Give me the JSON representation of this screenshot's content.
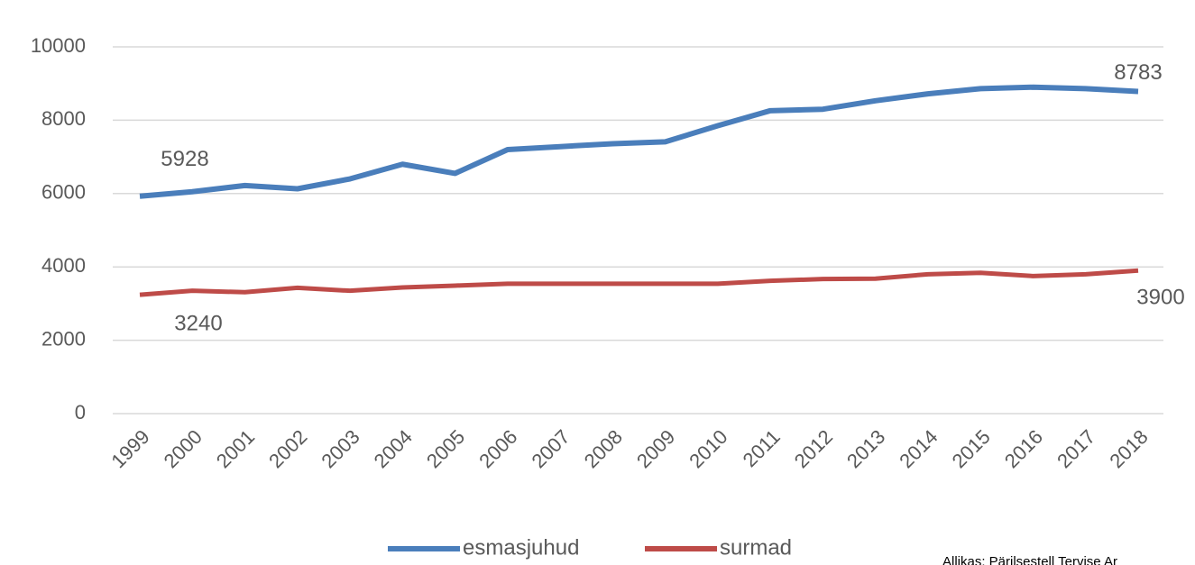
{
  "chart_data": {
    "type": "line",
    "x": [
      "1999",
      "2000",
      "2001",
      "2002",
      "2003",
      "2004",
      "2005",
      "2006",
      "2007",
      "2008",
      "2009",
      "2010",
      "2011",
      "2012",
      "2013",
      "2014",
      "2015",
      "2016",
      "2017",
      "2018"
    ],
    "series": [
      {
        "name": "esmasjuhud",
        "color": "#4a7ebb",
        "values": [
          5928,
          6050,
          6220,
          6130,
          6400,
          6800,
          6550,
          7200,
          7280,
          7360,
          7410,
          7850,
          8260,
          8300,
          8530,
          8720,
          8860,
          8900,
          8860,
          8783
        ],
        "labeled_indices": [
          0,
          19
        ]
      },
      {
        "name": "surmad",
        "color": "#be4b48",
        "values": [
          3240,
          3350,
          3310,
          3430,
          3350,
          3440,
          3490,
          3540,
          3540,
          3540,
          3540,
          3540,
          3620,
          3670,
          3680,
          3800,
          3840,
          3750,
          3800,
          3900
        ],
        "labeled_indices": [
          0,
          19
        ]
      }
    ],
    "ylim": [
      0,
      10000
    ],
    "yticks": [
      0,
      2000,
      4000,
      6000,
      8000,
      10000
    ],
    "grid": true,
    "legend": "bottom",
    "source": "Allikas: Pärilsestell Tervise Ar"
  }
}
